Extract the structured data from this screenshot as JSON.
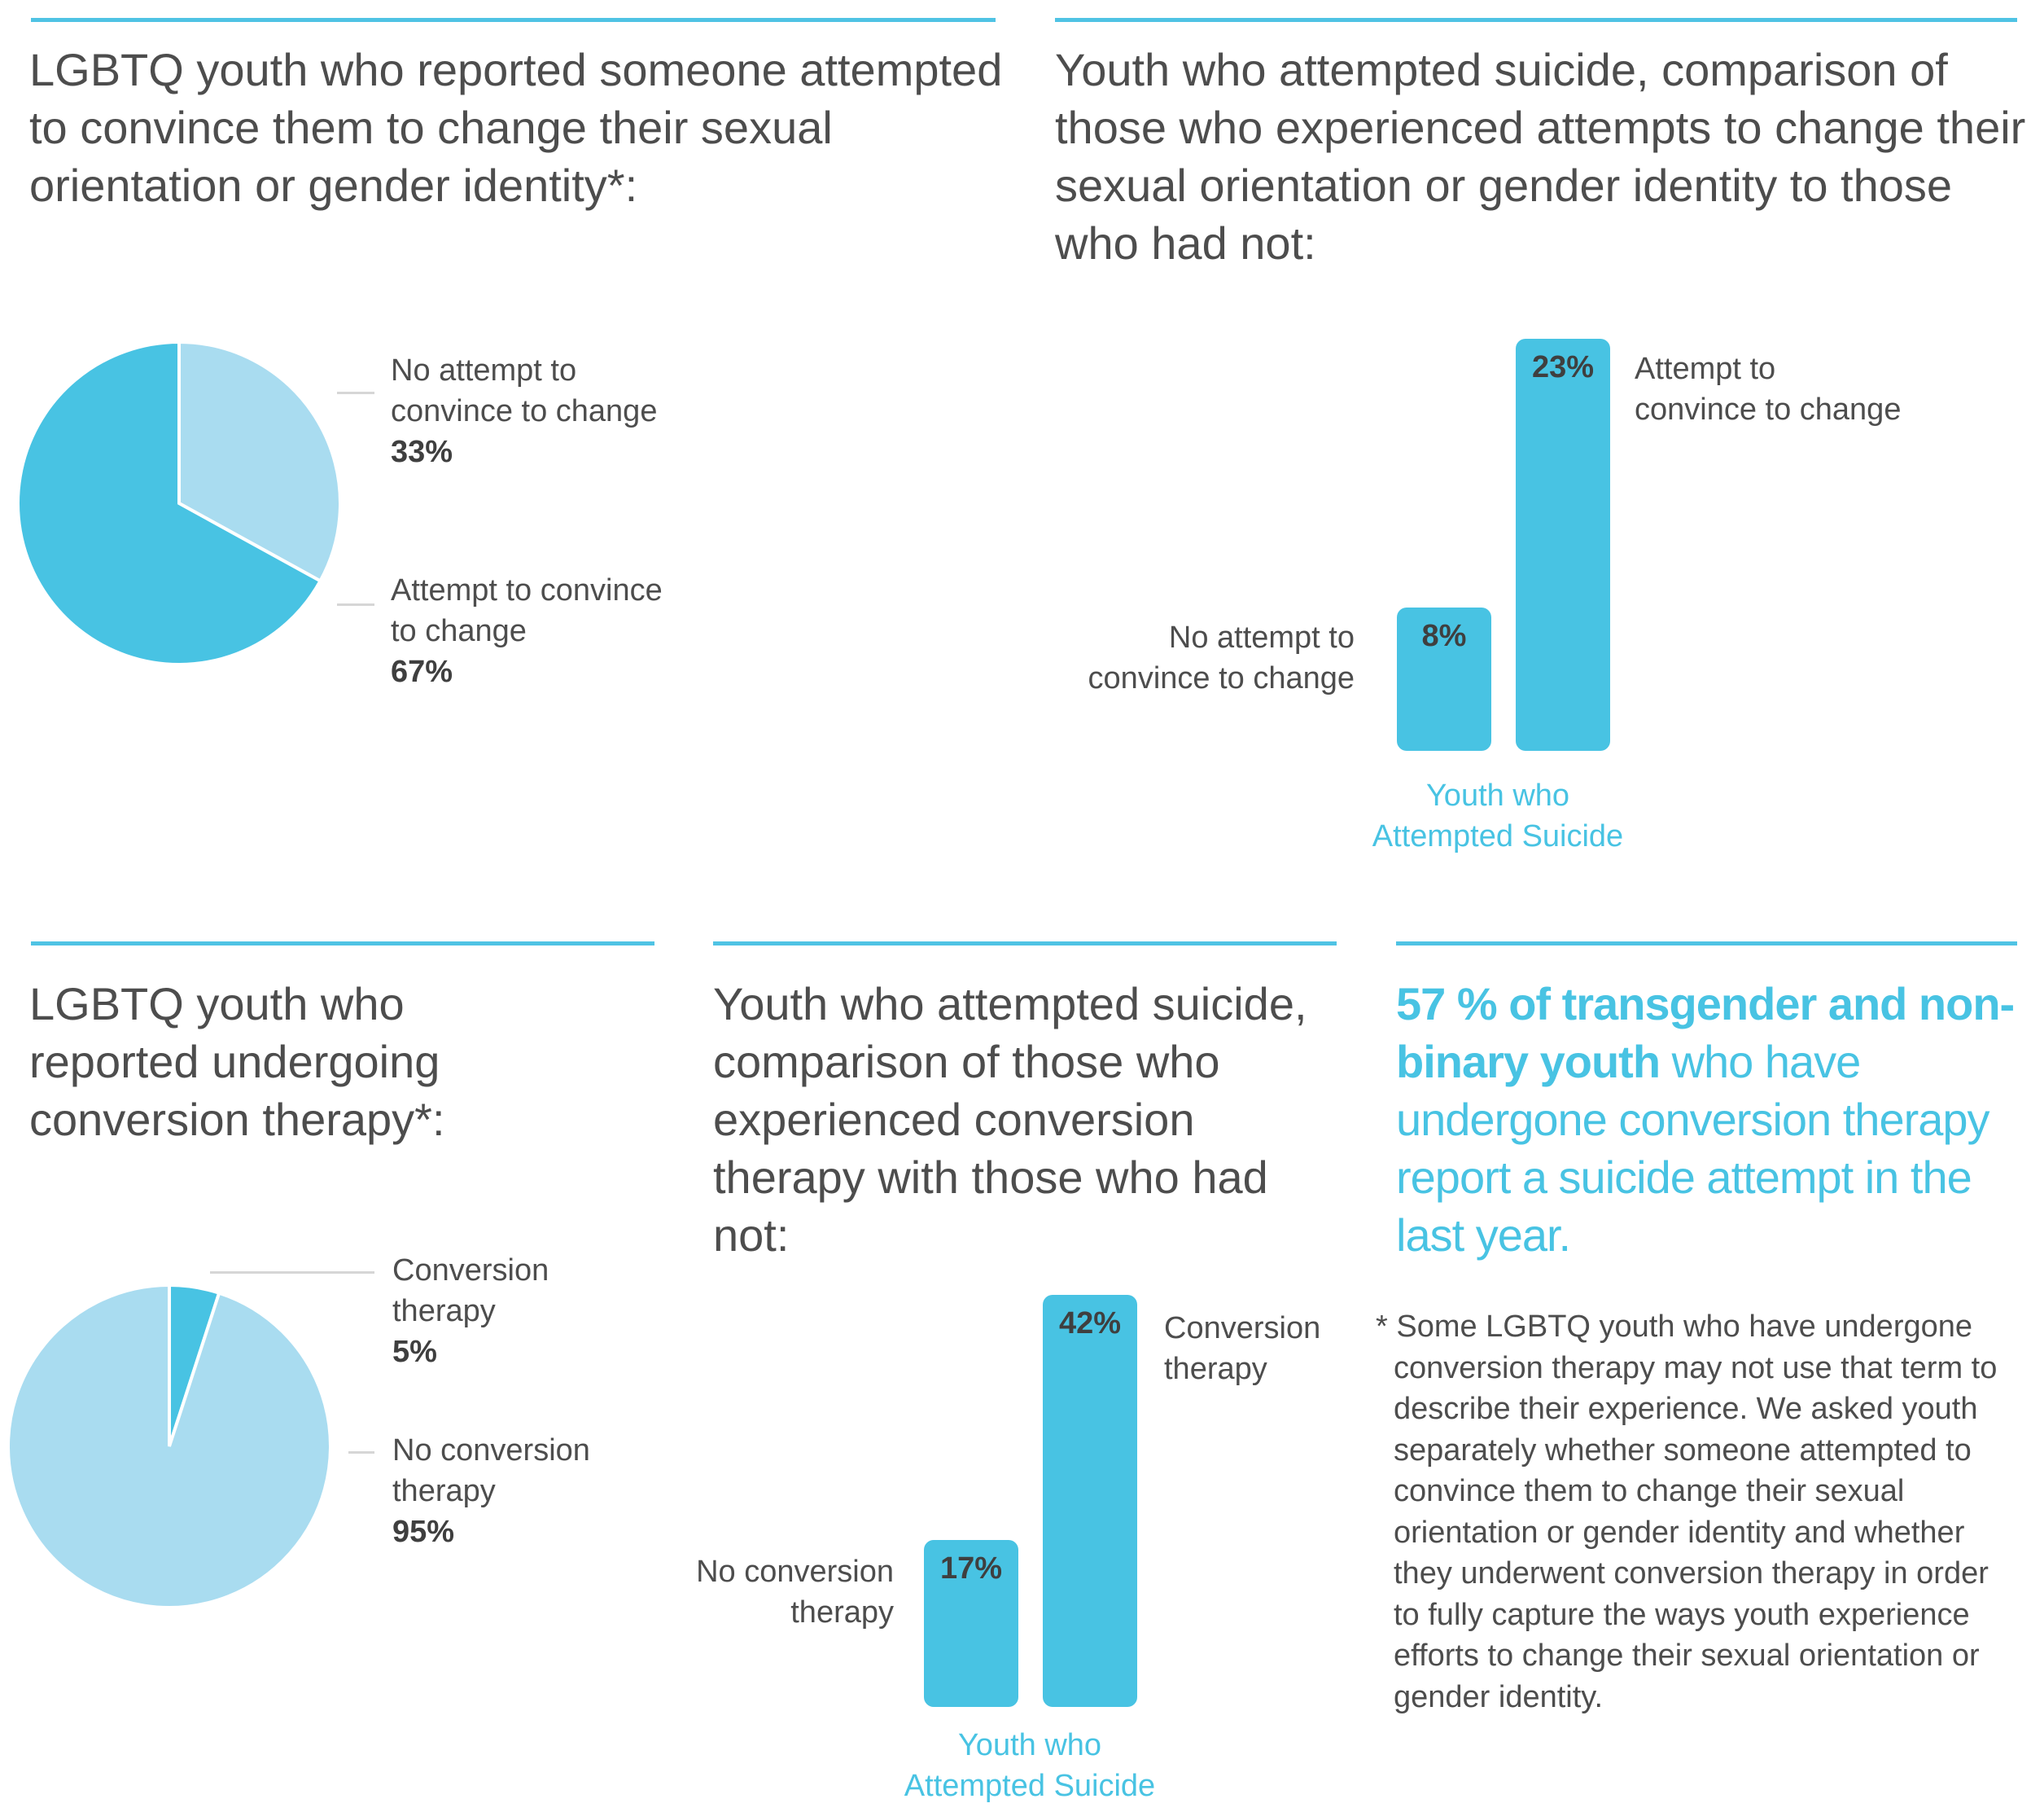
{
  "colors": {
    "accent": "#48c3e3",
    "light": "#a9dcf0",
    "rule": "#4fc3e4",
    "text": "#4d4d4d"
  },
  "panel1": {
    "title": "LGBTQ youth who reported someone attempted to convince them to change their sexual orientation or gender identity*:",
    "chart_data": {
      "type": "pie",
      "slices": [
        {
          "label_line1": "No attempt to",
          "label_line2": "convince to change",
          "value": 33,
          "value_text": "33%"
        },
        {
          "label_line1": "Attempt to convince",
          "label_line2": "to change",
          "value": 67,
          "value_text": "67%"
        }
      ]
    }
  },
  "panel2": {
    "title": "Youth who attempted suicide, comparison of those who experienced attempts to change their sexual orientation or gender identity to those who had not:",
    "chart_data": {
      "type": "bar",
      "category": "Youth who Attempted Suicide",
      "category_line1": "Youth who",
      "category_line2": "Attempted Suicide",
      "series": [
        {
          "name_line1": "No attempt to",
          "name_line2": "convince to change",
          "value": 8,
          "value_text": "8%"
        },
        {
          "name_line1": "Attempt to",
          "name_line2": "convince to change",
          "value": 23,
          "value_text": "23%"
        }
      ]
    }
  },
  "panel3": {
    "title": "LGBTQ youth who reported undergoing conversion therapy*:",
    "chart_data": {
      "type": "pie",
      "slices": [
        {
          "label_line1": "Conversion",
          "label_line2": "therapy",
          "value": 5,
          "value_text": "5%"
        },
        {
          "label_line1": "No conversion",
          "label_line2": "therapy",
          "value": 95,
          "value_text": "95%"
        }
      ]
    }
  },
  "panel4": {
    "title": "Youth who attempted suicide, comparison of those who experienced conversion therapy with those who had not:",
    "chart_data": {
      "type": "bar",
      "category": "Youth who Attempted Suicide",
      "category_line1": "Youth who",
      "category_line2": "Attempted Suicide",
      "series": [
        {
          "name_line1": "No conversion",
          "name_line2": "therapy",
          "value": 17,
          "value_text": "17%"
        },
        {
          "name_line1": "Conversion",
          "name_line2": "therapy",
          "value": 42,
          "value_text": "42%"
        }
      ]
    }
  },
  "panel5": {
    "highlight_bold": "57 % of transgender and non-binary youth",
    "highlight_rest": " who have undergone conversion therapy report a suicide attempt in the last year.",
    "footnote": "* Some LGBTQ youth who have undergone conversion therapy may not use that term to describe their experience. We asked youth separately whether someone attempted to convince them to change their sexual orientation or gender identity and whether they underwent conversion therapy in order to fully capture the ways youth experience efforts to change their sexual orientation or gender identity."
  }
}
